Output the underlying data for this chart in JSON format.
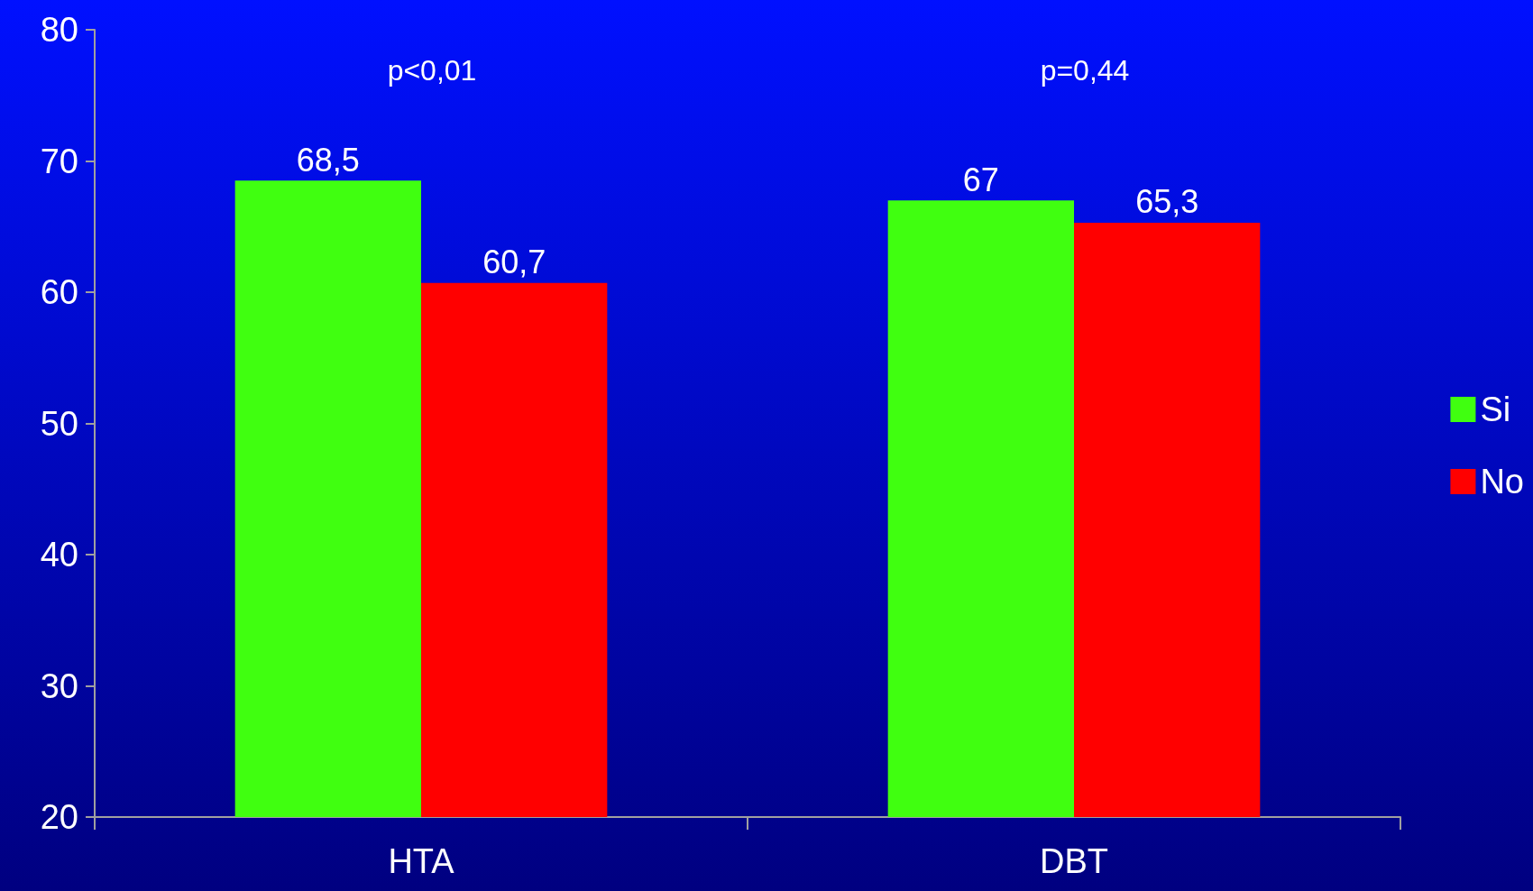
{
  "chart_data": {
    "type": "bar",
    "categories": [
      "HTA",
      "DBT"
    ],
    "series": [
      {
        "name": "Si",
        "color": "#40ff10",
        "values": [
          68.5,
          67
        ],
        "value_labels": [
          "68,5",
          "67"
        ]
      },
      {
        "name": "No",
        "color": "#ff0000",
        "values": [
          60.7,
          65.3
        ],
        "value_labels": [
          "60,7",
          "65,3"
        ]
      }
    ],
    "ylim": [
      20,
      80
    ],
    "yticks": [
      20,
      30,
      40,
      50,
      60,
      70,
      80
    ],
    "grid": false,
    "legend": "right",
    "annotations": [
      "p<0,01",
      "p=0,44"
    ]
  }
}
